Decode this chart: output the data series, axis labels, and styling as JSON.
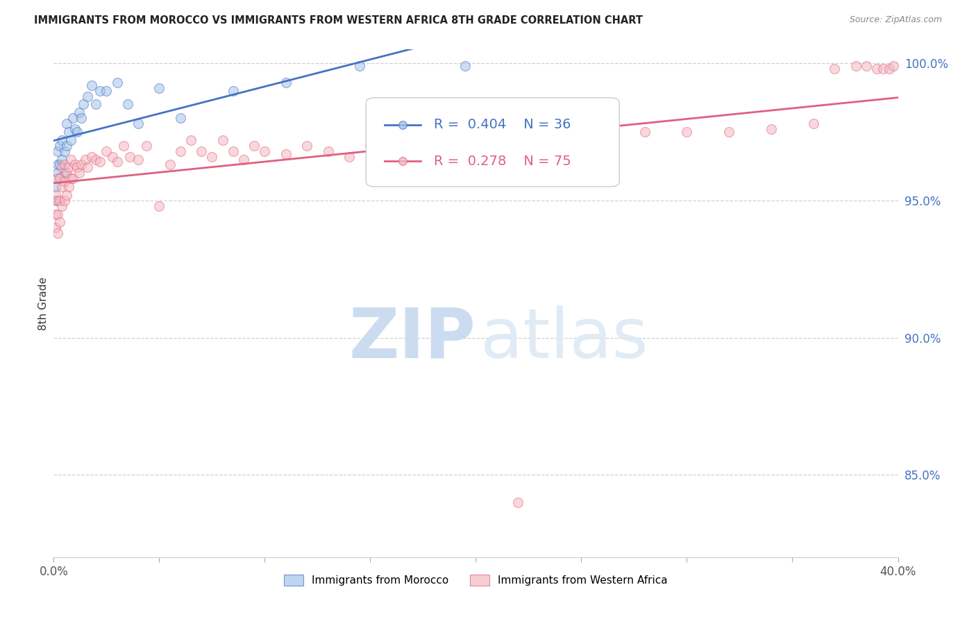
{
  "title": "IMMIGRANTS FROM MOROCCO VS IMMIGRANTS FROM WESTERN AFRICA 8TH GRADE CORRELATION CHART",
  "source": "Source: ZipAtlas.com",
  "ylabel": "8th Grade",
  "xlim": [
    0.0,
    0.4
  ],
  "ylim": [
    0.82,
    1.005
  ],
  "x_tick_positions": [
    0.0,
    0.05,
    0.1,
    0.15,
    0.2,
    0.25,
    0.3,
    0.35,
    0.4
  ],
  "x_tick_labels": [
    "0.0%",
    "",
    "",
    "",
    "",
    "",
    "",
    "",
    "40.0%"
  ],
  "y_ticks_right": [
    0.85,
    0.9,
    0.95,
    1.0
  ],
  "y_tick_labels_right": [
    "85.0%",
    "90.0%",
    "95.0%",
    "100.0%"
  ],
  "morocco_R": 0.404,
  "morocco_N": 36,
  "western_africa_R": 0.278,
  "western_africa_N": 75,
  "morocco_color": "#a4c2e8",
  "western_africa_color": "#f4b8c1",
  "morocco_line_color": "#4472c4",
  "western_africa_line_color": "#e06080",
  "background_color": "#ffffff",
  "grid_color": "#d0d0d0",
  "morocco_x": [
    0.001,
    0.001,
    0.002,
    0.002,
    0.002,
    0.003,
    0.003,
    0.003,
    0.004,
    0.004,
    0.005,
    0.005,
    0.006,
    0.006,
    0.007,
    0.008,
    0.009,
    0.01,
    0.011,
    0.012,
    0.013,
    0.014,
    0.016,
    0.018,
    0.02,
    0.022,
    0.025,
    0.03,
    0.035,
    0.04,
    0.05,
    0.06,
    0.085,
    0.11,
    0.145,
    0.195
  ],
  "morocco_y": [
    0.95,
    0.955,
    0.96,
    0.963,
    0.968,
    0.958,
    0.963,
    0.97,
    0.965,
    0.972,
    0.96,
    0.968,
    0.97,
    0.978,
    0.975,
    0.972,
    0.98,
    0.976,
    0.975,
    0.982,
    0.98,
    0.985,
    0.988,
    0.992,
    0.985,
    0.99,
    0.99,
    0.993,
    0.985,
    0.978,
    0.991,
    0.98,
    0.99,
    0.993,
    0.999,
    0.999
  ],
  "western_africa_x": [
    0.001,
    0.001,
    0.001,
    0.002,
    0.002,
    0.002,
    0.002,
    0.003,
    0.003,
    0.003,
    0.004,
    0.004,
    0.004,
    0.005,
    0.005,
    0.005,
    0.006,
    0.006,
    0.007,
    0.007,
    0.008,
    0.008,
    0.009,
    0.01,
    0.011,
    0.012,
    0.013,
    0.015,
    0.016,
    0.018,
    0.02,
    0.022,
    0.025,
    0.028,
    0.03,
    0.033,
    0.036,
    0.04,
    0.044,
    0.05,
    0.055,
    0.06,
    0.065,
    0.07,
    0.075,
    0.08,
    0.085,
    0.09,
    0.095,
    0.1,
    0.11,
    0.12,
    0.13,
    0.14,
    0.15,
    0.16,
    0.17,
    0.18,
    0.19,
    0.2,
    0.22,
    0.24,
    0.26,
    0.28,
    0.3,
    0.32,
    0.34,
    0.36,
    0.37,
    0.38,
    0.385,
    0.39,
    0.393,
    0.396,
    0.398
  ],
  "western_africa_y": [
    0.94,
    0.945,
    0.952,
    0.938,
    0.945,
    0.95,
    0.958,
    0.942,
    0.95,
    0.958,
    0.948,
    0.955,
    0.962,
    0.95,
    0.957,
    0.963,
    0.952,
    0.96,
    0.955,
    0.962,
    0.958,
    0.965,
    0.958,
    0.963,
    0.962,
    0.96,
    0.963,
    0.965,
    0.962,
    0.966,
    0.965,
    0.964,
    0.968,
    0.966,
    0.964,
    0.97,
    0.966,
    0.965,
    0.97,
    0.948,
    0.963,
    0.968,
    0.972,
    0.968,
    0.966,
    0.972,
    0.968,
    0.965,
    0.97,
    0.968,
    0.967,
    0.97,
    0.968,
    0.966,
    0.97,
    0.968,
    0.972,
    0.97,
    0.975,
    0.972,
    0.84,
    0.97,
    0.972,
    0.975,
    0.975,
    0.975,
    0.976,
    0.978,
    0.998,
    0.999,
    0.999,
    0.998,
    0.998,
    0.998,
    0.999
  ]
}
